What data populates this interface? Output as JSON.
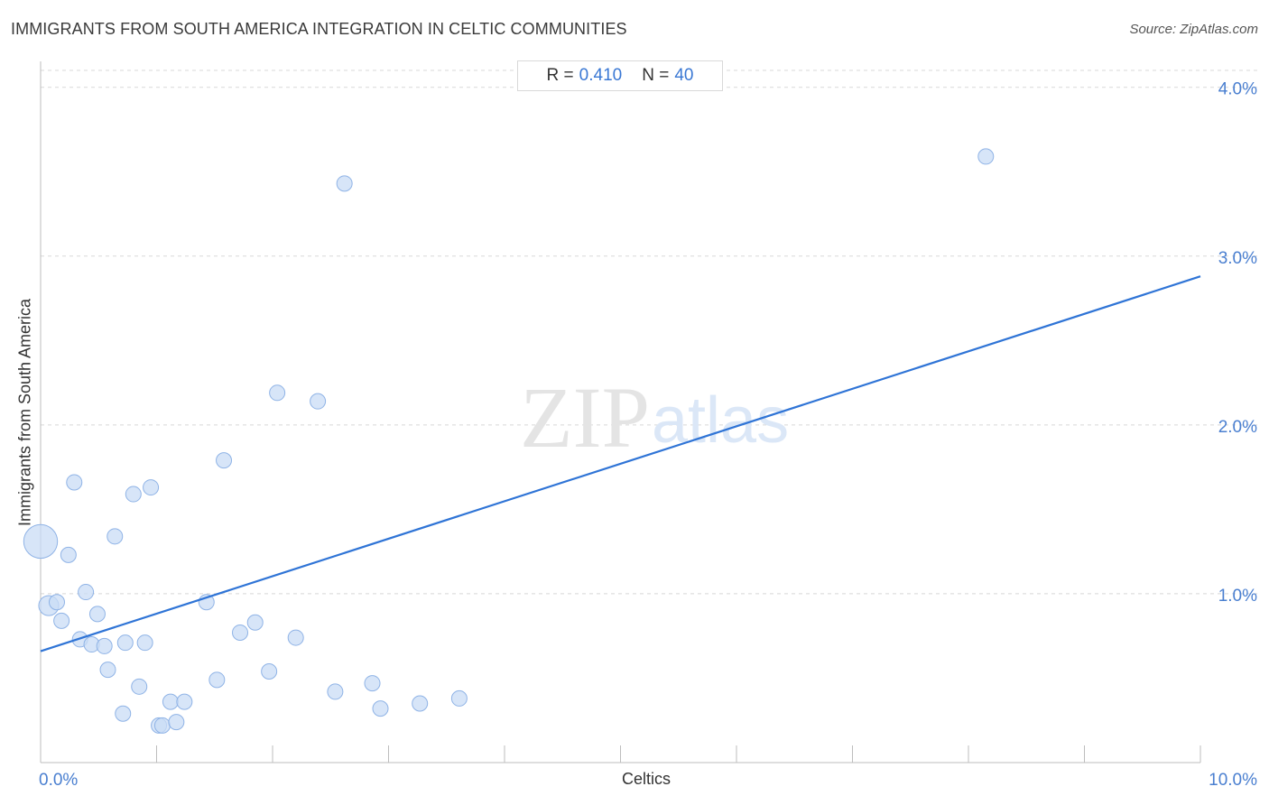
{
  "chart_data": {
    "type": "scatter",
    "title": "IMMIGRANTS FROM SOUTH AMERICA INTEGRATION IN CELTIC COMMUNITIES",
    "source": "Source: ZipAtlas.com",
    "xlabel": "Celtics",
    "ylabel": "Immigrants from South America",
    "xlim": [
      0,
      10
    ],
    "ylim": [
      0,
      4.1
    ],
    "x_ticks": [
      {
        "value": 0,
        "label": "0.0%"
      },
      {
        "value": 10,
        "label": "10.0%"
      }
    ],
    "y_ticks": [
      {
        "value": 1,
        "label": "1.0%"
      },
      {
        "value": 2,
        "label": "2.0%"
      },
      {
        "value": 3,
        "label": "3.0%"
      },
      {
        "value": 4,
        "label": "4.0%"
      }
    ],
    "stats": {
      "r_label": "R =",
      "r_value": "0.410",
      "n_label": "N =",
      "n_value": "40"
    },
    "trendline": {
      "x": [
        0,
        10
      ],
      "y": [
        0.66,
        2.88
      ]
    },
    "colors": {
      "point_fill": "#c9dcf5",
      "point_stroke": "#8fb3e6",
      "trend": "#2f74d6",
      "grid": "#d8d8d8"
    },
    "points": [
      {
        "x": 0.0,
        "y": 1.31,
        "size": 2.2
      },
      {
        "x": 0.07,
        "y": 0.93,
        "size": 1.3
      },
      {
        "x": 0.14,
        "y": 0.95,
        "size": 1
      },
      {
        "x": 0.18,
        "y": 0.84,
        "size": 1
      },
      {
        "x": 0.24,
        "y": 1.23,
        "size": 1
      },
      {
        "x": 0.29,
        "y": 1.66,
        "size": 1
      },
      {
        "x": 0.34,
        "y": 0.73,
        "size": 1
      },
      {
        "x": 0.39,
        "y": 1.01,
        "size": 1
      },
      {
        "x": 0.44,
        "y": 0.7,
        "size": 1
      },
      {
        "x": 0.49,
        "y": 0.88,
        "size": 1
      },
      {
        "x": 0.55,
        "y": 0.69,
        "size": 1
      },
      {
        "x": 0.58,
        "y": 0.55,
        "size": 1
      },
      {
        "x": 0.64,
        "y": 1.34,
        "size": 1
      },
      {
        "x": 0.71,
        "y": 0.29,
        "size": 1
      },
      {
        "x": 0.73,
        "y": 0.71,
        "size": 1
      },
      {
        "x": 0.8,
        "y": 1.59,
        "size": 1
      },
      {
        "x": 0.85,
        "y": 0.45,
        "size": 1
      },
      {
        "x": 0.9,
        "y": 0.71,
        "size": 1
      },
      {
        "x": 0.95,
        "y": 1.63,
        "size": 1
      },
      {
        "x": 1.02,
        "y": 0.22,
        "size": 1
      },
      {
        "x": 1.05,
        "y": 0.22,
        "size": 1
      },
      {
        "x": 1.12,
        "y": 0.36,
        "size": 1
      },
      {
        "x": 1.17,
        "y": 0.24,
        "size": 1
      },
      {
        "x": 1.24,
        "y": 0.36,
        "size": 1
      },
      {
        "x": 1.43,
        "y": 0.95,
        "size": 1
      },
      {
        "x": 1.52,
        "y": 0.49,
        "size": 1
      },
      {
        "x": 1.58,
        "y": 1.79,
        "size": 1
      },
      {
        "x": 1.72,
        "y": 0.77,
        "size": 1
      },
      {
        "x": 1.85,
        "y": 0.83,
        "size": 1
      },
      {
        "x": 1.97,
        "y": 0.54,
        "size": 1
      },
      {
        "x": 2.04,
        "y": 2.19,
        "size": 1
      },
      {
        "x": 2.2,
        "y": 0.74,
        "size": 1
      },
      {
        "x": 2.39,
        "y": 2.14,
        "size": 1
      },
      {
        "x": 2.54,
        "y": 0.42,
        "size": 1
      },
      {
        "x": 2.62,
        "y": 3.43,
        "size": 1
      },
      {
        "x": 2.86,
        "y": 0.47,
        "size": 1
      },
      {
        "x": 2.93,
        "y": 0.32,
        "size": 1
      },
      {
        "x": 3.27,
        "y": 0.35,
        "size": 1
      },
      {
        "x": 3.61,
        "y": 0.38,
        "size": 1
      },
      {
        "x": 8.15,
        "y": 3.59,
        "size": 1
      }
    ]
  }
}
